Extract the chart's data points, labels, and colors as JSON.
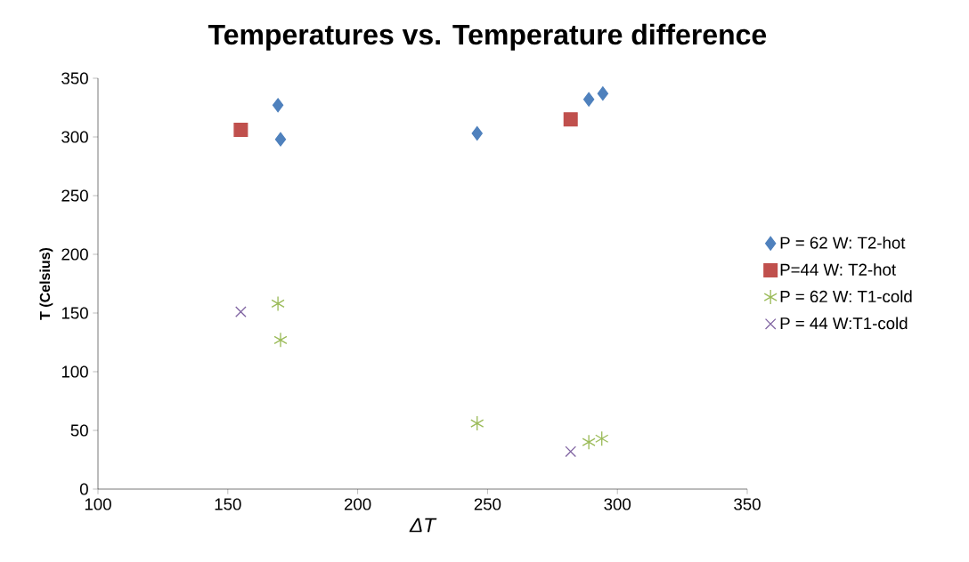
{
  "chart_data": {
    "type": "scatter",
    "title": "Temperatures vs. Temperature difference",
    "xlabel": "ΔT",
    "ylabel": "T (Celsius)",
    "xlim": [
      100,
      350
    ],
    "xticks": [
      100,
      150,
      200,
      250,
      300,
      350
    ],
    "ylim": [
      0,
      350
    ],
    "yticks": [
      0,
      50,
      100,
      150,
      200,
      250,
      300,
      350
    ],
    "legend": "right",
    "grid": false,
    "series": [
      {
        "name": "P = 62 W: T2-hot",
        "color": "#4f81bd",
        "marker": "diamond",
        "x": [
          169.3,
          170.3,
          246,
          289,
          294.4
        ],
        "values": [
          327,
          298,
          303,
          332,
          337
        ]
      },
      {
        "name": "P=44 W: T2-hot",
        "color": "#c0504d",
        "marker": "square",
        "x": [
          155,
          282
        ],
        "values": [
          306,
          315
        ]
      },
      {
        "name": "P = 62 W: T1-cold",
        "color": "#9bbb59",
        "marker": "cross",
        "x": [
          169.3,
          170.3,
          246,
          289,
          294
        ],
        "values": [
          158,
          127,
          56,
          40,
          43
        ]
      },
      {
        "name": "P = 44 W:T1-cold",
        "color": "#8064a2",
        "marker": "cross",
        "x": [
          155,
          282
        ],
        "values": [
          151,
          32
        ]
      }
    ]
  }
}
